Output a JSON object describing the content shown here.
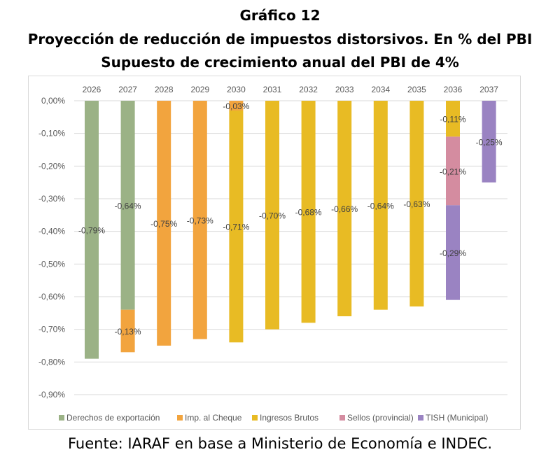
{
  "title": {
    "line1": "Gráfico 12",
    "line2": "Proyección de reducción de impuestos distorsivos. En % del PBI",
    "line3": "Supuesto de crecimiento anual del PBI de 4%"
  },
  "source": "Fuente: IARAF en base a Ministerio de Economía e INDEC.",
  "chart_data": {
    "type": "bar",
    "stacked": true,
    "categories": [
      "2026",
      "2027",
      "2028",
      "2029",
      "2030",
      "2031",
      "2032",
      "2033",
      "2034",
      "2035",
      "2036",
      "2037"
    ],
    "ylim": [
      -0.9,
      0
    ],
    "yticks": [
      "0,00%",
      "-0,10%",
      "-0,20%",
      "-0,30%",
      "-0,40%",
      "-0,50%",
      "-0,60%",
      "-0,70%",
      "-0,80%",
      "-0,90%"
    ],
    "grid": true,
    "legend": "bottom",
    "series": [
      {
        "name": "Derechos de exportación",
        "color": "#9bb286",
        "values": [
          -0.79,
          -0.64,
          0,
          0,
          0,
          0,
          0,
          0,
          0,
          0,
          0,
          0
        ],
        "labels": [
          "-0,79%",
          "-0,64%",
          "",
          "",
          "",
          "",
          "",
          "",
          "",
          "",
          "",
          ""
        ]
      },
      {
        "name": "Imp. al Cheque",
        "color": "#f2a43e",
        "values": [
          0,
          -0.13,
          -0.75,
          -0.73,
          -0.03,
          0,
          0,
          0,
          0,
          0,
          0,
          0
        ],
        "labels": [
          "",
          "-0,13%",
          "-0,75%",
          "-0,73%",
          "-0,03%",
          "",
          "",
          "",
          "",
          "",
          "",
          ""
        ]
      },
      {
        "name": "Ingresos Brutos",
        "color": "#e8bb24",
        "values": [
          0,
          0,
          0,
          0,
          -0.71,
          -0.7,
          -0.68,
          -0.66,
          -0.64,
          -0.63,
          -0.11,
          0
        ],
        "labels": [
          "",
          "",
          "",
          "",
          "-0,71%",
          "-0,70%",
          "-0,68%",
          "-0,66%",
          "-0,64%",
          "-0,63%",
          "-0,11%",
          ""
        ]
      },
      {
        "name": "Sellos (provincial)",
        "color": "#d48ca0",
        "values": [
          0,
          0,
          0,
          0,
          0,
          0,
          0,
          0,
          0,
          0,
          -0.21,
          0
        ],
        "labels": [
          "",
          "",
          "",
          "",
          "",
          "",
          "",
          "",
          "",
          "",
          "-0,21%",
          ""
        ]
      },
      {
        "name": "TISH (Municipal)",
        "color": "#9a83c2",
        "values": [
          0,
          0,
          0,
          0,
          0,
          0,
          0,
          0,
          0,
          0,
          -0.29,
          -0.25
        ],
        "labels": [
          "",
          "",
          "",
          "",
          "",
          "",
          "",
          "",
          "",
          "",
          "-0,29%",
          "-0,25%"
        ]
      }
    ]
  }
}
